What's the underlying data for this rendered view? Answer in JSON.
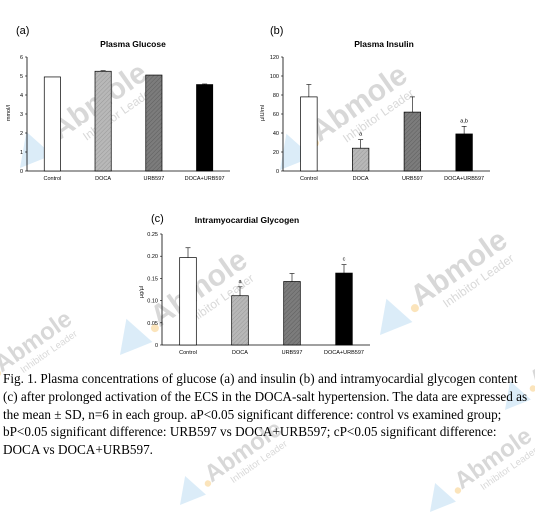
{
  "watermark": {
    "brand": "Abmole",
    "tagline": "Inhibitor Leader",
    "accent_color": "#5aa8e0",
    "dot_color": "#f4b23c"
  },
  "chart_data": [
    {
      "panel": "(a)",
      "type": "bar",
      "title": "Plasma Glucose",
      "ylabel": "mmol/l",
      "ylim": [
        0,
        6
      ],
      "yticks": [
        "0",
        "1",
        "2",
        "3",
        "4",
        "5",
        "6"
      ],
      "categories": [
        "Control",
        "DOCA",
        "URB597",
        "DOCA+URB597"
      ],
      "values": [
        4.95,
        5.25,
        5.05,
        4.55
      ],
      "errors": [
        0,
        0.03,
        0,
        0.03
      ],
      "significance": [
        "",
        "",
        "",
        ""
      ],
      "fills": [
        "#ffffff",
        "#b3b3b3",
        "#7a7a7a",
        "#000000"
      ]
    },
    {
      "panel": "(b)",
      "type": "bar",
      "title": "Plasma Insulin",
      "ylabel": "µIU/ml",
      "ylim": [
        0,
        120
      ],
      "yticks": [
        "0",
        "20",
        "40",
        "60",
        "80",
        "100",
        "120"
      ],
      "categories": [
        "Control",
        "DOCA",
        "URB597",
        "DOCA+URB597"
      ],
      "values": [
        78,
        24,
        62,
        39
      ],
      "errors": [
        13,
        9,
        16,
        8
      ],
      "significance": [
        "",
        "a",
        "",
        "a,b"
      ],
      "fills": [
        "#ffffff",
        "#b3b3b3",
        "#7a7a7a",
        "#000000"
      ]
    },
    {
      "panel": "(c)",
      "type": "bar",
      "title": "Intramyocardial Glycogen",
      "ylabel": "µg/µl",
      "ylim": [
        0,
        0.25
      ],
      "yticks": [
        "0",
        "0.05",
        "0.10",
        "0.15",
        "0.20",
        "0.25"
      ],
      "categories": [
        "Control",
        "DOCA",
        "URB597",
        "DOCA+URB597"
      ],
      "values": [
        0.197,
        0.111,
        0.143,
        0.162
      ],
      "errors": [
        0.022,
        0.02,
        0.018,
        0.019
      ],
      "significance": [
        "",
        "a",
        "",
        "c"
      ],
      "fills": [
        "#ffffff",
        "#b3b3b3",
        "#7a7a7a",
        "#000000"
      ]
    }
  ],
  "caption": "Fig. 1. Plasma concentrations of glucose (a) and insulin (b) and intramyocardial glycogen content (c) after prolonged activation of the ECS in the DOCA-salt hypertension. The data are expressed as the mean ± SD, n=6 in each group. aP<0.05 significant difference: control vs examined group; bP<0.05 significant difference: URB597 vs DOCA+URB597; cP<0.05 significant difference: DOCA vs DOCA+URB597."
}
